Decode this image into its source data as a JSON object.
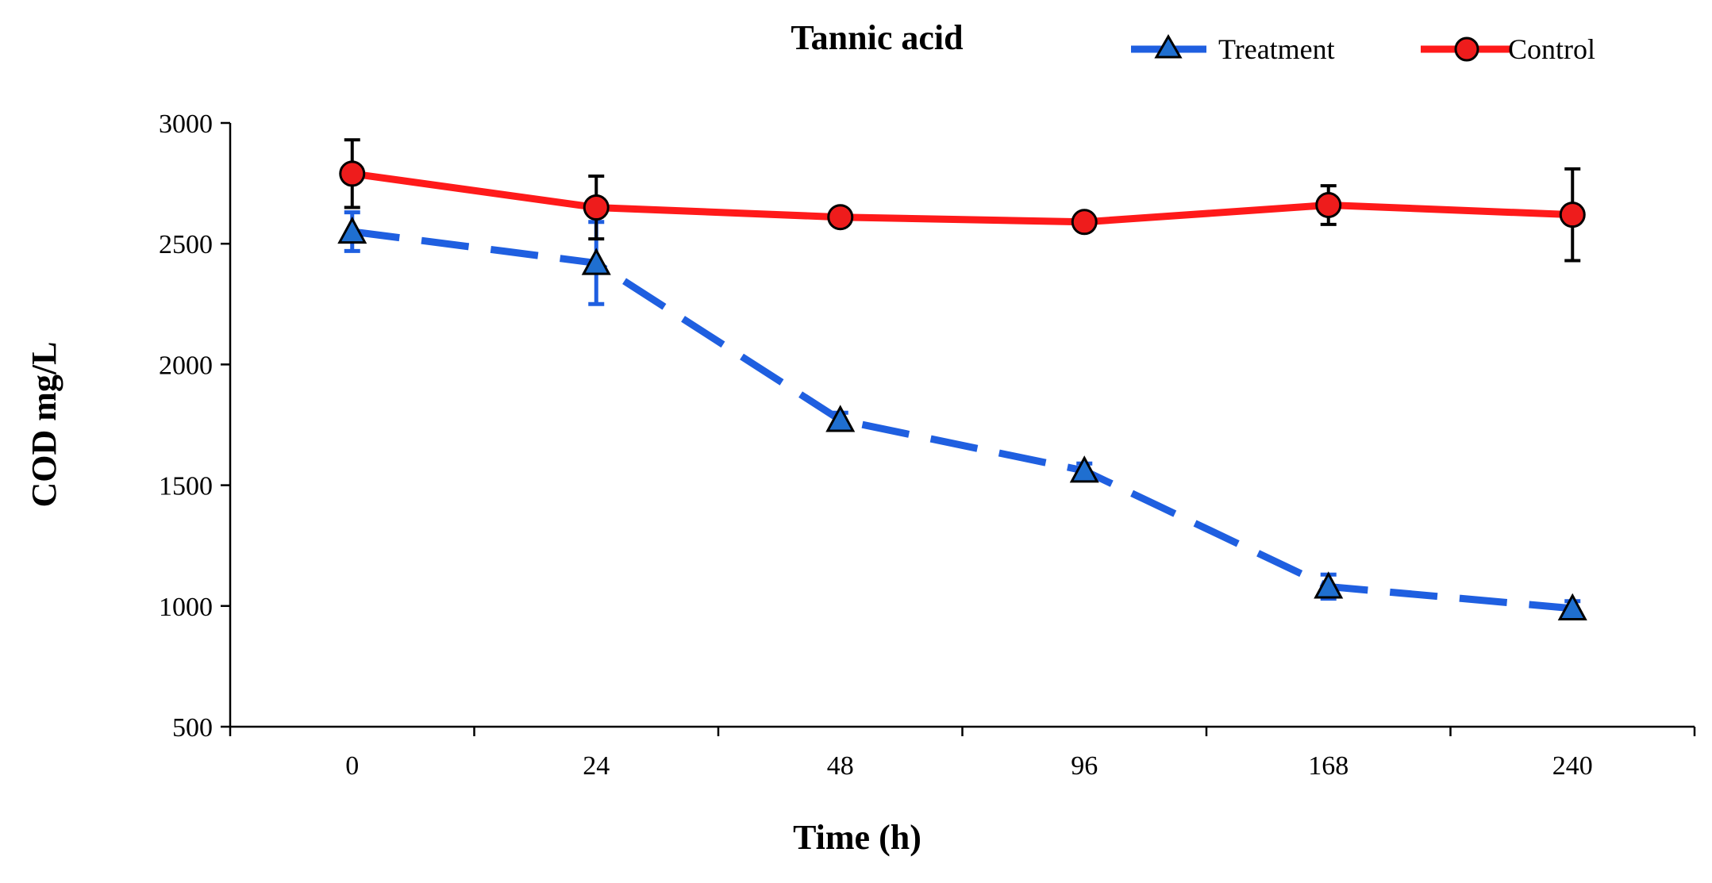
{
  "chart_data": {
    "type": "line",
    "title": "Tannic acid",
    "xlabel": "Time (h)",
    "ylabel": "COD mg/L",
    "categories": [
      "0",
      "24",
      "48",
      "96",
      "168",
      "240"
    ],
    "ylim": [
      500,
      3000
    ],
    "yticks": [
      500,
      1000,
      1500,
      2000,
      2500,
      3000
    ],
    "grid": false,
    "legend_position": "top-right",
    "series": [
      {
        "name": "Treatment",
        "color": "#1f5fe0",
        "marker": "triangle",
        "line_style": "dashed",
        "values": [
          2550,
          2420,
          1770,
          1560,
          1080,
          990
        ],
        "errors": [
          80,
          170,
          30,
          30,
          50,
          30
        ]
      },
      {
        "name": "Control",
        "color": "#ff1a1a",
        "marker": "circle",
        "line_style": "solid",
        "values": [
          2790,
          2650,
          2610,
          2590,
          2660,
          2620
        ],
        "errors": [
          140,
          130,
          20,
          20,
          80,
          190
        ]
      }
    ]
  }
}
